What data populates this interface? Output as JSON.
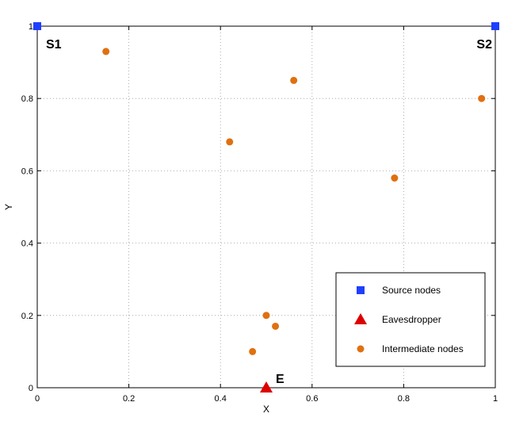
{
  "chart_data": {
    "type": "scatter",
    "xlabel": "X",
    "ylabel": "Y",
    "xlim": [
      0,
      1
    ],
    "ylim": [
      0,
      1
    ],
    "grid": true,
    "legend_position": "bottom-right",
    "x_ticks": [
      {
        "value": 0,
        "label": "0"
      },
      {
        "value": 0.2,
        "label": "0.2"
      },
      {
        "value": 0.4,
        "label": "0.4"
      },
      {
        "value": 0.6,
        "label": "0.6"
      },
      {
        "value": 0.8,
        "label": "0.8"
      },
      {
        "value": 1,
        "label": "1"
      }
    ],
    "y_ticks": [
      {
        "value": 0,
        "label": "0"
      },
      {
        "value": 0.2,
        "label": "0.2"
      },
      {
        "value": 0.4,
        "label": "0.4"
      },
      {
        "value": 0.6,
        "label": "0.6"
      },
      {
        "value": 0.8,
        "label": "0.8"
      },
      {
        "value": 1,
        "label": "1"
      }
    ],
    "series": [
      {
        "name": "Source nodes",
        "marker": "square",
        "color": "#1f3fff",
        "points": [
          {
            "x": 0,
            "y": 1,
            "label": "S1"
          },
          {
            "x": 1,
            "y": 1,
            "label": "S2"
          }
        ]
      },
      {
        "name": "Eavesdropper",
        "marker": "triangle",
        "color": "#dd0000",
        "points": [
          {
            "x": 0.5,
            "y": 0,
            "label": "E"
          }
        ]
      },
      {
        "name": "Intermediate nodes",
        "marker": "circle",
        "color": "#e07010",
        "points": [
          {
            "x": 0.15,
            "y": 0.93
          },
          {
            "x": 0.56,
            "y": 0.85
          },
          {
            "x": 0.97,
            "y": 0.8
          },
          {
            "x": 0.42,
            "y": 0.68
          },
          {
            "x": 0.78,
            "y": 0.58
          },
          {
            "x": 0.5,
            "y": 0.2
          },
          {
            "x": 0.52,
            "y": 0.17
          },
          {
            "x": 0.47,
            "y": 0.1
          }
        ]
      }
    ]
  }
}
